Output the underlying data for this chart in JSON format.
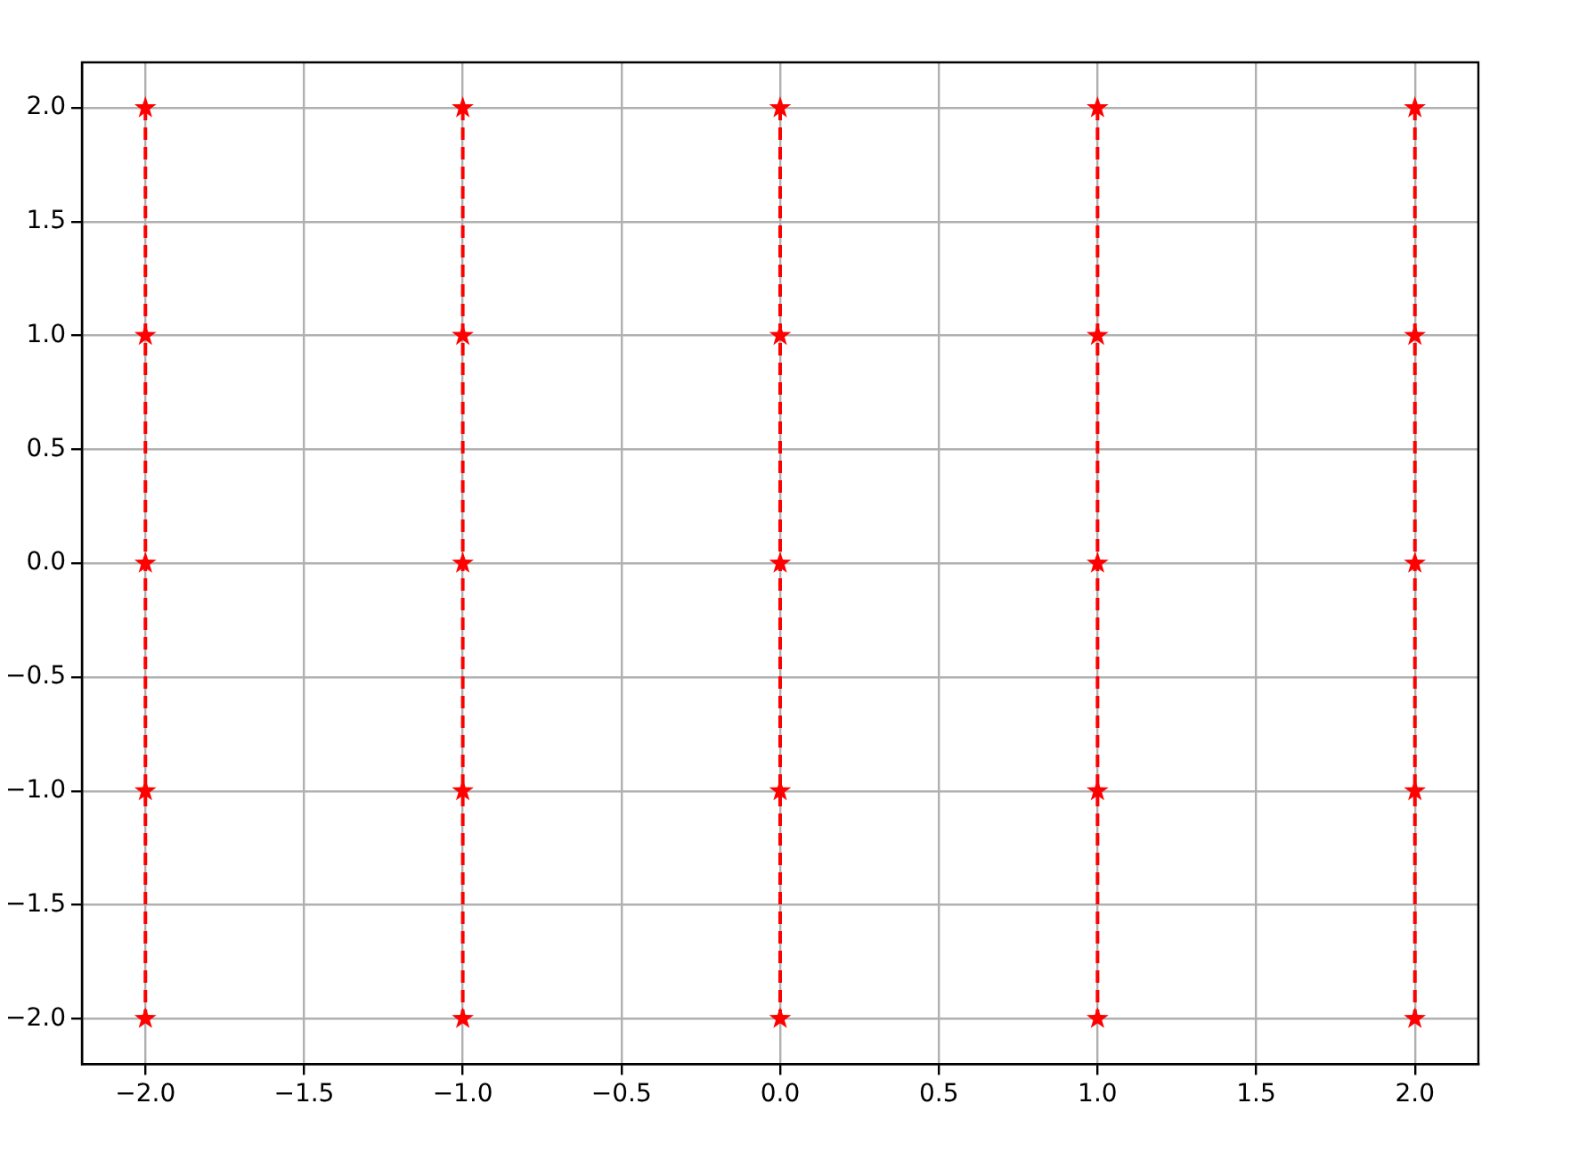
{
  "chart_data": {
    "type": "line",
    "xlim": [
      -2.2,
      2.2
    ],
    "ylim": [
      -2.2,
      2.2
    ],
    "xticks": [
      {
        "value": -2,
        "label": "−2.0"
      },
      {
        "value": -1.5,
        "label": "−1.5"
      },
      {
        "value": -1,
        "label": "−1.0"
      },
      {
        "value": -0.5,
        "label": "−0.5"
      },
      {
        "value": 0,
        "label": "0.0"
      },
      {
        "value": 0.5,
        "label": "0.5"
      },
      {
        "value": 1,
        "label": "1.0"
      },
      {
        "value": 1.5,
        "label": "1.5"
      },
      {
        "value": 2,
        "label": "2.0"
      }
    ],
    "yticks": [
      {
        "value": -2,
        "label": "−2.0"
      },
      {
        "value": -1.5,
        "label": "−1.5"
      },
      {
        "value": -1,
        "label": "−1.0"
      },
      {
        "value": -0.5,
        "label": "−0.5"
      },
      {
        "value": 0,
        "label": "0.0"
      },
      {
        "value": 0.5,
        "label": "0.5"
      },
      {
        "value": 1,
        "label": "1.0"
      },
      {
        "value": 1.5,
        "label": "1.5"
      },
      {
        "value": 2,
        "label": "2.0"
      }
    ],
    "series": [
      {
        "color": "#ff0000",
        "x": [
          -2,
          -2,
          -2,
          -2,
          -2
        ],
        "values": [
          2,
          1,
          0,
          -1,
          -2
        ]
      },
      {
        "color": "#ff0000",
        "x": [
          -1,
          -1,
          -1,
          -1,
          -1
        ],
        "values": [
          2,
          1,
          0,
          -1,
          -2
        ]
      },
      {
        "color": "#ff0000",
        "x": [
          0,
          0,
          0,
          0,
          0
        ],
        "values": [
          2,
          1,
          0,
          -1,
          -2
        ]
      },
      {
        "color": "#ff0000",
        "x": [
          1,
          1,
          1,
          1,
          1
        ],
        "values": [
          2,
          1,
          0,
          -1,
          -2
        ]
      },
      {
        "color": "#ff0000",
        "x": [
          2,
          2,
          2,
          2,
          2
        ],
        "values": [
          2,
          1,
          0,
          -1,
          -2
        ]
      }
    ],
    "grid": true,
    "legend": false,
    "marker": "star",
    "line_style": "dashed"
  }
}
